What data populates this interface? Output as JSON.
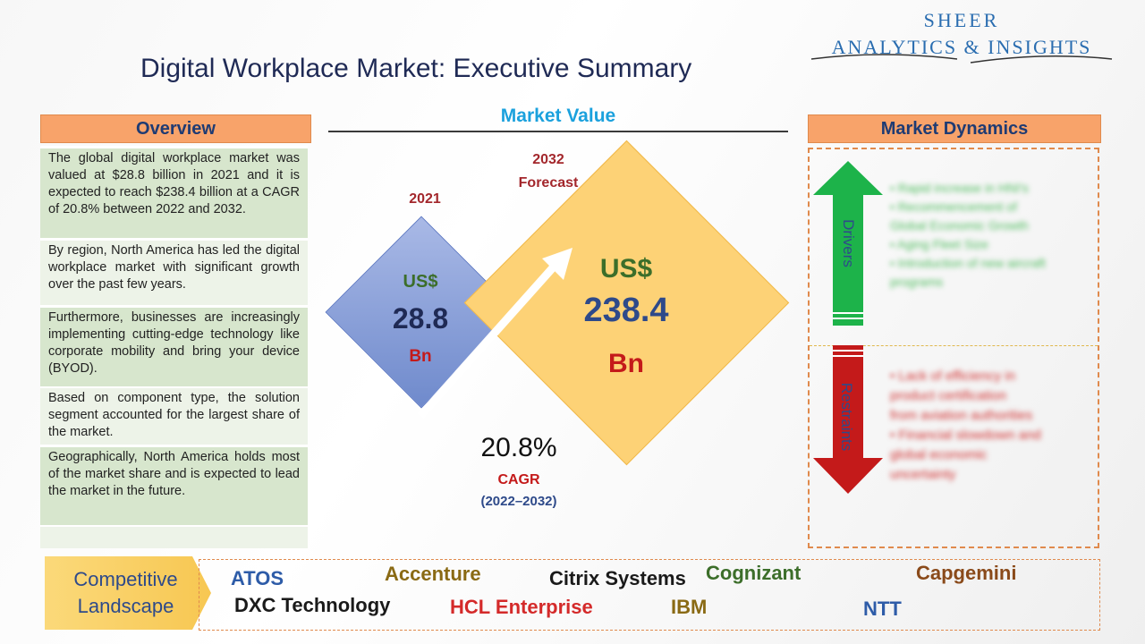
{
  "header": {
    "title": "Digital Workplace Market: Executive Summary",
    "logo_line1": "SHEER",
    "logo_line2": "ANALYTICS & INSIGHTS"
  },
  "overview": {
    "heading": "Overview",
    "items": [
      "The global digital workplace market was valued at $28.8 billion in 2021 and it is expected to reach $238.4 billion at a CAGR of 20.8% between 2022 and 2032.",
      "By region, North America has led the digital workplace market with significant growth over the past few years.",
      "Furthermore, businesses are increasingly implementing cutting-edge technology like corporate mobility and bring your device (BYOD).",
      "Based on component type, the solution segment accounted for the largest share of the market.",
      "Geographically, North America holds most of the market share and is expected to lead the market in the future."
    ]
  },
  "market_value": {
    "heading": "Market Value",
    "year_2021": "2021",
    "value_2021_currency": "US$",
    "value_2021": "28.8",
    "value_2021_unit": "Bn",
    "year_2032": "2032",
    "year_2032_label": "Forecast",
    "value_2032_currency": "US$",
    "value_2032": "238.4",
    "value_2032_unit": "Bn",
    "cagr_value": "20.8%",
    "cagr_label": "CAGR",
    "cagr_period": "(2022–2032)"
  },
  "market_dynamics": {
    "heading": "Market Dynamics",
    "drivers_label": "Drivers",
    "restraints_label": "Restraints",
    "drivers": [
      "• Rapid increase in HNI's",
      "• Recommencement of",
      "  Global Economic Growth",
      "• Aging Fleet Size",
      "• Introduction of new aircraft",
      "  programs"
    ],
    "restraints": [
      "• Lack of efficiency in",
      "  product certification",
      "  from aviation authorities",
      "• Financial slowdown and",
      "  global economic",
      "  uncertainty"
    ]
  },
  "competitive_landscape": {
    "label_line1": "Competitive",
    "label_line2": "Landscape",
    "companies": [
      {
        "name": "ATOS",
        "color": "#2e5ca8"
      },
      {
        "name": "Accenture",
        "color": "#8a6a14"
      },
      {
        "name": "Citrix Systems",
        "color": "#1a1a1a"
      },
      {
        "name": "Cognizant",
        "color": "#3c6e2a"
      },
      {
        "name": "Capgemini",
        "color": "#8a4a1a"
      },
      {
        "name": "DXC Technology",
        "color": "#1a1a1a"
      },
      {
        "name": "HCL Enterprise",
        "color": "#d42a2a"
      },
      {
        "name": "IBM",
        "color": "#8a6a14"
      },
      {
        "name": "NTT",
        "color": "#2e5ca8"
      }
    ]
  },
  "colors": {
    "accent_blue": "#1ba1dd",
    "header_orange": "#f8a36a",
    "drivers_green": "#1db34a",
    "restraints_red": "#c41a1a"
  }
}
